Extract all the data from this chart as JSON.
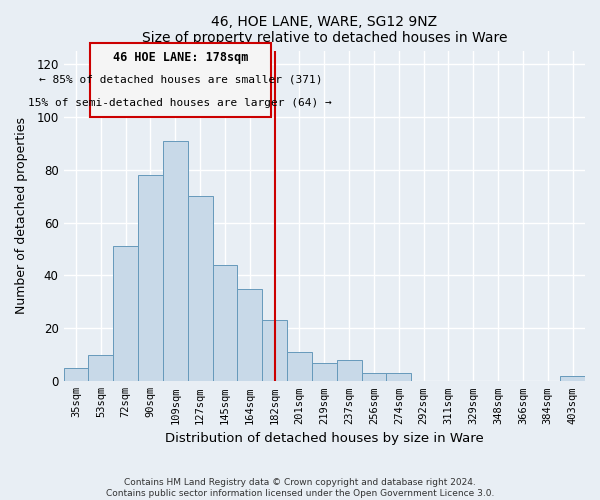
{
  "title": "46, HOE LANE, WARE, SG12 9NZ",
  "subtitle": "Size of property relative to detached houses in Ware",
  "xlabel": "Distribution of detached houses by size in Ware",
  "ylabel": "Number of detached properties",
  "bar_color": "#c8d9e8",
  "bar_edge_color": "#6699bb",
  "categories": [
    "35sqm",
    "53sqm",
    "72sqm",
    "90sqm",
    "109sqm",
    "127sqm",
    "145sqm",
    "164sqm",
    "182sqm",
    "201sqm",
    "219sqm",
    "237sqm",
    "256sqm",
    "274sqm",
    "292sqm",
    "311sqm",
    "329sqm",
    "348sqm",
    "366sqm",
    "384sqm",
    "403sqm"
  ],
  "values": [
    5,
    10,
    51,
    78,
    91,
    70,
    44,
    35,
    23,
    11,
    7,
    8,
    3,
    3,
    0,
    0,
    0,
    0,
    0,
    0,
    2
  ],
  "vline_index": 8,
  "vline_color": "#cc0000",
  "ylim": [
    0,
    125
  ],
  "yticks": [
    0,
    20,
    40,
    60,
    80,
    100,
    120
  ],
  "annotation_title": "46 HOE LANE: 178sqm",
  "annotation_line1": "← 85% of detached houses are smaller (371)",
  "annotation_line2": "15% of semi-detached houses are larger (64) →",
  "footer1": "Contains HM Land Registry data © Crown copyright and database right 2024.",
  "footer2": "Contains public sector information licensed under the Open Government Licence 3.0.",
  "background_color": "#e8eef4",
  "grid_color": "#d0dae4",
  "box_color": "#cc0000",
  "box_face_color": "#f5f5f5"
}
